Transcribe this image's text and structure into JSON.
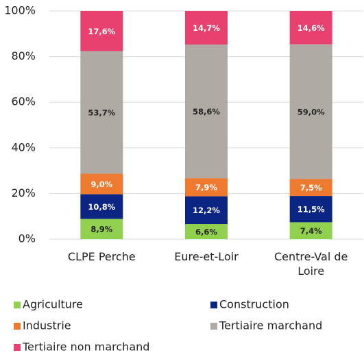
{
  "chart_data": {
    "type": "stacked_bar",
    "categories": [
      "CLPE Perche",
      "Eure-et-Loir",
      "Centre-Val de Loire"
    ],
    "series": [
      {
        "name": "Agriculture",
        "color": "#92d050",
        "label_color": "#222222",
        "values": [
          8.9,
          6.6,
          7.4
        ],
        "value_labels": [
          "8,9%",
          "6,6%",
          "7,4%"
        ]
      },
      {
        "name": "Construction",
        "color": "#0b2585",
        "label_color": "#ffffff",
        "values": [
          10.8,
          12.2,
          11.5
        ],
        "value_labels": [
          "10,8%",
          "12,2%",
          "11,5%"
        ]
      },
      {
        "name": "Industrie",
        "color": "#ee7a30",
        "label_color": "#ffffff",
        "values": [
          9.0,
          7.9,
          7.5
        ],
        "value_labels": [
          "9,0%",
          "7,9%",
          "7,5%"
        ]
      },
      {
        "name": "Tertiaire marchand",
        "color": "#b0aaa4",
        "label_color": "#222222",
        "values": [
          53.7,
          58.6,
          59.0
        ],
        "value_labels": [
          "53,7%",
          "58,6%",
          "59,0%"
        ]
      },
      {
        "name": "Tertiaire non marchand",
        "color": "#e8416f",
        "label_color": "#ffffff",
        "values": [
          17.6,
          14.7,
          14.6
        ],
        "value_labels": [
          "17,6%",
          "14,7%",
          "14,6%"
        ]
      }
    ],
    "ylim": [
      0,
      100
    ],
    "yticks": [
      {
        "value": 0,
        "label": "0%"
      },
      {
        "value": 20,
        "label": "20%"
      },
      {
        "value": 40,
        "label": "40%"
      },
      {
        "value": 60,
        "label": "60%"
      },
      {
        "value": 80,
        "label": "80%"
      },
      {
        "value": 100,
        "label": "100%"
      }
    ],
    "grid": true
  }
}
